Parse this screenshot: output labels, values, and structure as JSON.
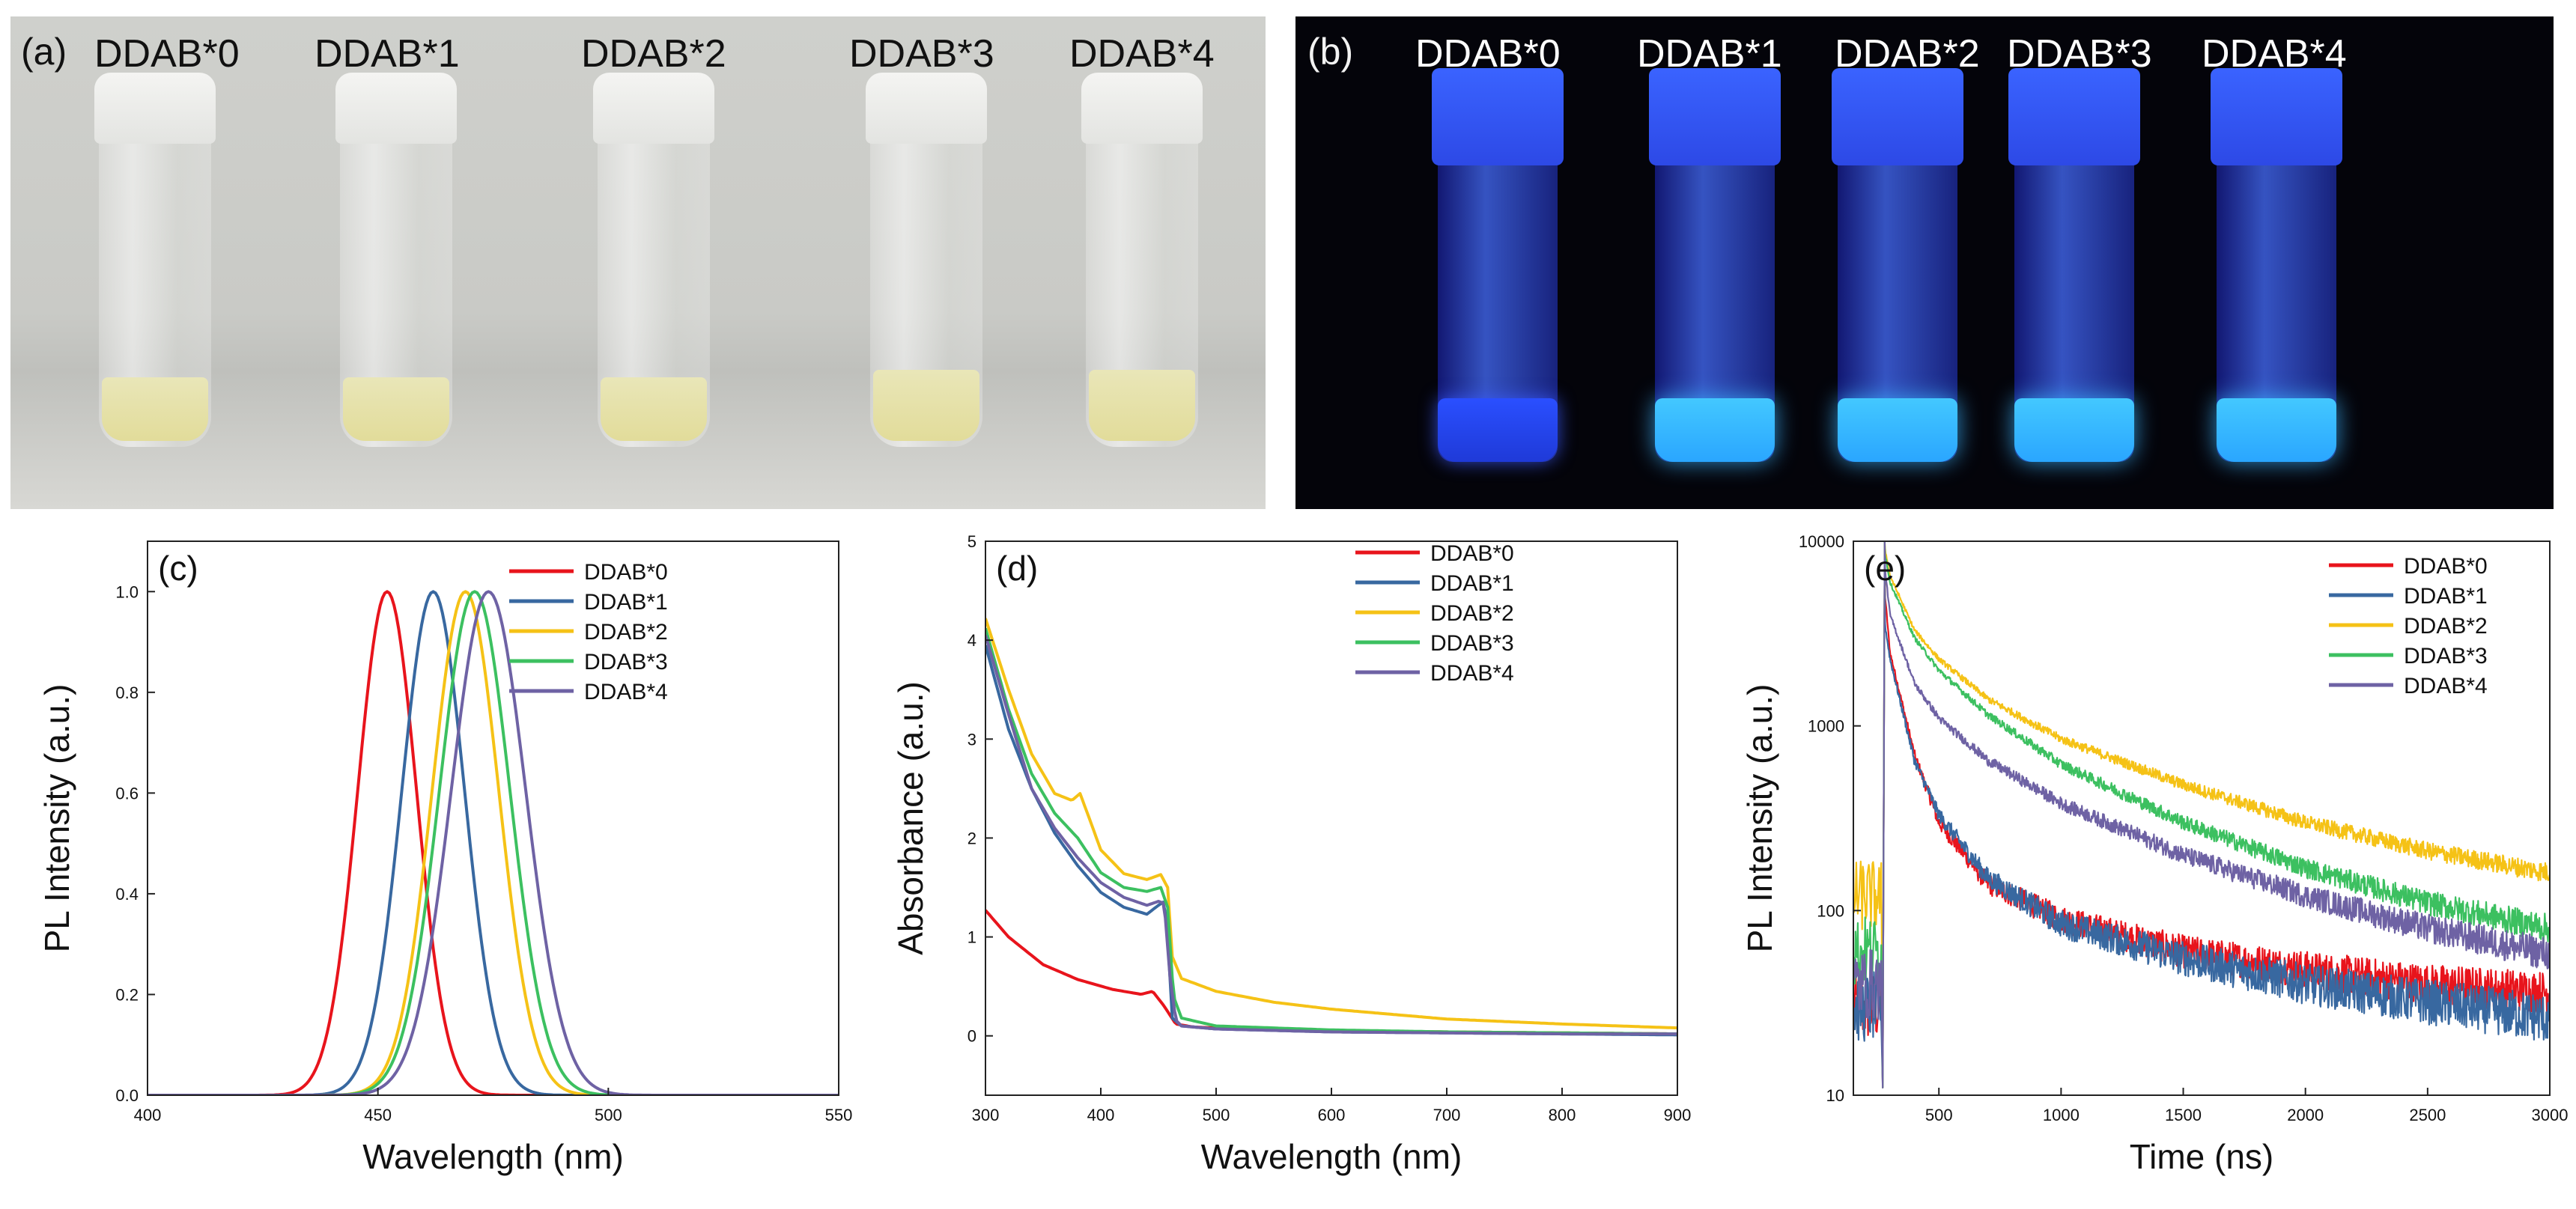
{
  "photos": {
    "a": {
      "tag": "(a)",
      "labels": [
        "DDAB*0",
        "DDAB*1",
        "DDAB*2",
        "DDAB*3",
        "DDAB*4"
      ],
      "description_colors": {
        "liquid": "#e4dea3",
        "background": "#cbccc8"
      }
    },
    "b": {
      "tag": "(b)",
      "labels": [
        "DDAB*0",
        "DDAB*1",
        "DDAB*2",
        "DDAB*3",
        "DDAB*4"
      ],
      "description_colors": {
        "glow": "#3fb8ff",
        "background": "#04040a"
      }
    }
  },
  "series_colors": [
    "#e8141c",
    "#3868a0",
    "#f5c216",
    "#3cc060",
    "#6e62a4"
  ],
  "chart_data": [
    {
      "id": "c",
      "tag": "(c)",
      "type": "line",
      "xlabel": "Wavelength (nm)",
      "ylabel": "PL Intensity (a.u.)",
      "xlim": [
        400,
        550
      ],
      "ylim": [
        0.0,
        1.1
      ],
      "xticks": [
        400,
        450,
        500,
        550
      ],
      "yticks": [
        0.0,
        0.2,
        0.4,
        0.6,
        0.8,
        1.0
      ],
      "ytick_labels": [
        "0.0",
        "0.2",
        "0.4",
        "0.6",
        "0.8",
        "1.0"
      ],
      "legend": [
        "DDAB*0",
        "DDAB*1",
        "DDAB*2",
        "DDAB*3",
        "DDAB*4"
      ],
      "legend_position": "top-right",
      "series": [
        {
          "name": "DDAB*0",
          "peak_nm": 452,
          "fwhm_nm": 15
        },
        {
          "name": "DDAB*1",
          "peak_nm": 462,
          "fwhm_nm": 16
        },
        {
          "name": "DDAB*2",
          "peak_nm": 469,
          "fwhm_nm": 17
        },
        {
          "name": "DDAB*3",
          "peak_nm": 471,
          "fwhm_nm": 18
        },
        {
          "name": "DDAB*4",
          "peak_nm": 474,
          "fwhm_nm": 19
        }
      ]
    },
    {
      "id": "d",
      "tag": "(d)",
      "type": "line",
      "xlabel": "Wavelength (nm)",
      "ylabel": "Absorbance (a.u.)",
      "xlim": [
        300,
        900
      ],
      "ylim": [
        -0.6,
        5.0
      ],
      "xticks": [
        300,
        400,
        500,
        600,
        700,
        800,
        900
      ],
      "yticks": [
        0,
        1,
        2,
        3,
        4,
        5
      ],
      "legend": [
        "DDAB*0",
        "DDAB*1",
        "DDAB*2",
        "DDAB*3",
        "DDAB*4"
      ],
      "legend_position": "top-right",
      "series": [
        {
          "name": "DDAB*0",
          "x": [
            300,
            320,
            350,
            380,
            410,
            435,
            445,
            455,
            465,
            480,
            520,
            600,
            700,
            800,
            900
          ],
          "y": [
            1.27,
            1.0,
            0.72,
            0.57,
            0.47,
            0.42,
            0.45,
            0.3,
            0.12,
            0.09,
            0.07,
            0.05,
            0.04,
            0.03,
            0.02
          ]
        },
        {
          "name": "DDAB*1",
          "x": [
            300,
            320,
            340,
            360,
            380,
            400,
            420,
            440,
            450,
            455,
            458,
            462,
            470,
            500,
            600,
            700,
            800,
            900
          ],
          "y": [
            3.95,
            3.1,
            2.5,
            2.05,
            1.72,
            1.45,
            1.3,
            1.23,
            1.32,
            1.36,
            1.0,
            0.18,
            0.1,
            0.07,
            0.04,
            0.03,
            0.02,
            0.01
          ]
        },
        {
          "name": "DDAB*2",
          "x": [
            300,
            320,
            340,
            360,
            375,
            382,
            390,
            400,
            420,
            440,
            452,
            458,
            462,
            470,
            500,
            550,
            600,
            700,
            800,
            900
          ],
          "y": [
            4.22,
            3.5,
            2.85,
            2.45,
            2.38,
            2.45,
            2.2,
            1.88,
            1.64,
            1.58,
            1.63,
            1.5,
            0.8,
            0.58,
            0.45,
            0.34,
            0.27,
            0.17,
            0.12,
            0.08
          ]
        },
        {
          "name": "DDAB*3",
          "x": [
            300,
            320,
            340,
            360,
            380,
            400,
            420,
            440,
            452,
            458,
            463,
            470,
            500,
            600,
            700,
            800,
            900
          ],
          "y": [
            4.12,
            3.3,
            2.65,
            2.25,
            2.0,
            1.65,
            1.5,
            1.46,
            1.5,
            1.3,
            0.4,
            0.18,
            0.1,
            0.06,
            0.04,
            0.03,
            0.02
          ]
        },
        {
          "name": "DDAB*4",
          "x": [
            300,
            320,
            340,
            360,
            380,
            400,
            420,
            440,
            450,
            455,
            460,
            465,
            470,
            500,
            600,
            700,
            800,
            900
          ],
          "y": [
            4.05,
            3.25,
            2.5,
            2.1,
            1.8,
            1.55,
            1.4,
            1.32,
            1.36,
            1.34,
            0.6,
            0.16,
            0.1,
            0.07,
            0.04,
            0.03,
            0.02,
            0.02
          ]
        }
      ]
    },
    {
      "id": "e",
      "tag": "(e)",
      "type": "line",
      "yscale": "log",
      "xlabel": "Time (ns)",
      "ylabel": "PL Intensity (a.u.)",
      "xlim": [
        150,
        3000
      ],
      "ylim": [
        10,
        10000
      ],
      "xticks": [
        500,
        1000,
        1500,
        2000,
        2500,
        3000
      ],
      "yticks": [
        10,
        100,
        1000,
        10000
      ],
      "legend": [
        "DDAB*0",
        "DDAB*1",
        "DDAB*2",
        "DDAB*3",
        "DDAB*4"
      ],
      "legend_position": "top-right",
      "series": [
        {
          "name": "DDAB*0",
          "pre_level": 30,
          "x": [
            280,
            300,
            400,
            500,
            700,
            1000,
            1500,
            2000,
            2500,
            3000
          ],
          "y": [
            5000,
            2500,
            700,
            300,
            140,
            90,
            60,
            48,
            40,
            36
          ]
        },
        {
          "name": "DDAB*1",
          "pre_level": 30,
          "x": [
            280,
            300,
            400,
            500,
            700,
            1000,
            1500,
            2000,
            2500,
            3000
          ],
          "y": [
            3500,
            2300,
            650,
            330,
            150,
            85,
            55,
            40,
            32,
            26
          ]
        },
        {
          "name": "DDAB*2",
          "pre_level": 120,
          "x": [
            280,
            300,
            400,
            500,
            700,
            1000,
            1500,
            2000,
            2500,
            3000
          ],
          "y": [
            9000,
            6500,
            3300,
            2300,
            1400,
            850,
            480,
            300,
            210,
            160
          ]
        },
        {
          "name": "DDAB*3",
          "pre_level": 60,
          "x": [
            280,
            300,
            400,
            500,
            700,
            1000,
            1500,
            2000,
            2500,
            3000
          ],
          "y": [
            8500,
            6000,
            3000,
            2000,
            1150,
            620,
            300,
            170,
            110,
            80
          ]
        },
        {
          "name": "DDAB*4",
          "pre_level": 40,
          "x": [
            280,
            300,
            400,
            500,
            700,
            1000,
            1500,
            2000,
            2500,
            3000
          ],
          "y": [
            7000,
            4000,
            1700,
            1100,
            650,
            380,
            200,
            120,
            80,
            58
          ]
        }
      ]
    }
  ]
}
